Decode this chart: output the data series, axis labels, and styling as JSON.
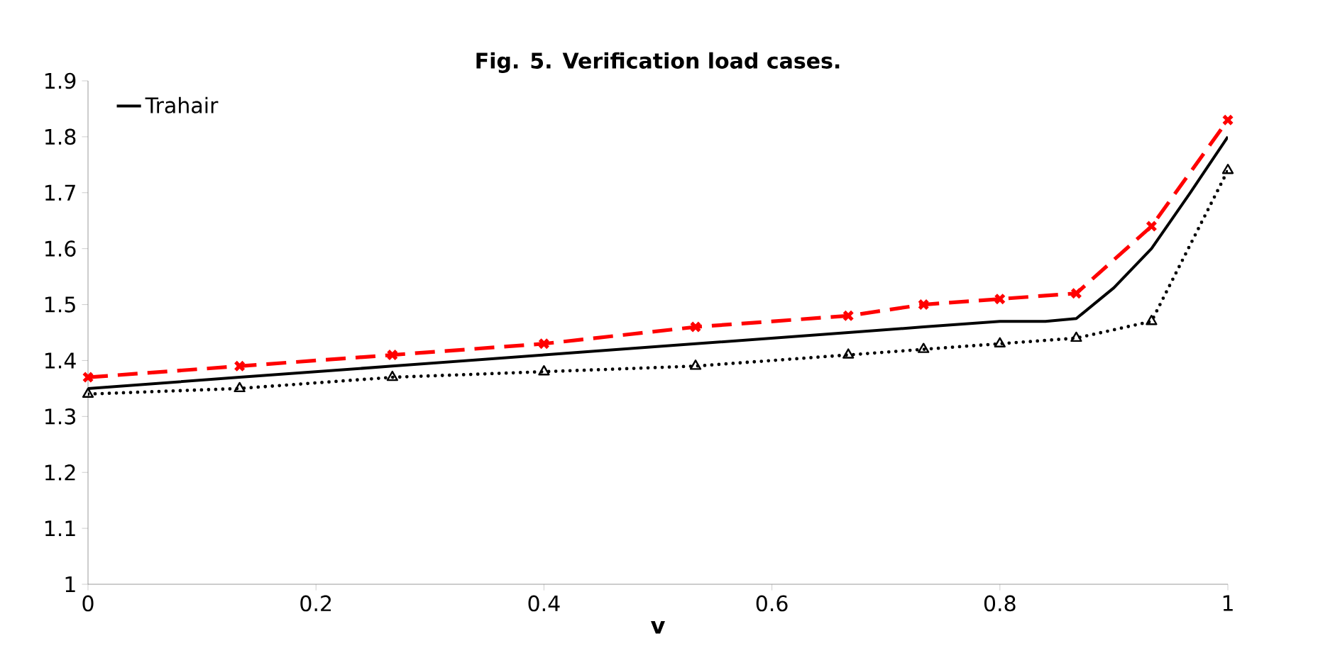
{
  "chart_data": {
    "type": "line",
    "title": "Fig. 5. Verification load cases.",
    "xlabel": "v",
    "xlim": [
      0,
      1
    ],
    "ylim": [
      1,
      1.9
    ],
    "xticks": [
      0,
      0.2,
      0.4,
      0.6,
      0.8,
      1
    ],
    "yticks": [
      1,
      1.1,
      1.2,
      1.3,
      1.4,
      1.5,
      1.6,
      1.7,
      1.8,
      1.9
    ],
    "grid": false,
    "legend": "top left",
    "series": [
      {
        "name": "Trahair",
        "color": "#000000",
        "line_style": "solid",
        "marker": "none",
        "x": [
          0,
          0.133,
          0.267,
          0.4,
          0.533,
          0.667,
          0.733,
          0.8,
          0.84,
          0.867,
          0.9,
          0.933,
          0.967,
          1
        ],
        "values": [
          1.35,
          1.37,
          1.39,
          1.41,
          1.43,
          1.45,
          1.46,
          1.47,
          1.47,
          1.475,
          1.53,
          1.6,
          1.7,
          1.8
        ]
      },
      {
        "color": "#ff0000",
        "line_style": "dashed",
        "marker": "cross",
        "x": [
          0,
          0.133,
          0.267,
          0.4,
          0.533,
          0.667,
          0.733,
          0.8,
          0.867,
          0.933,
          1
        ],
        "values": [
          1.37,
          1.39,
          1.41,
          1.43,
          1.46,
          1.48,
          1.5,
          1.51,
          1.52,
          1.64,
          1.83
        ]
      },
      {
        "color": "#000000",
        "line_style": "dotted",
        "marker": "triangle",
        "x": [
          0,
          0.133,
          0.267,
          0.4,
          0.533,
          0.667,
          0.733,
          0.8,
          0.867,
          0.933,
          1
        ],
        "values": [
          1.34,
          1.35,
          1.37,
          1.38,
          1.39,
          1.41,
          1.42,
          1.43,
          1.44,
          1.47,
          1.74
        ]
      }
    ]
  }
}
